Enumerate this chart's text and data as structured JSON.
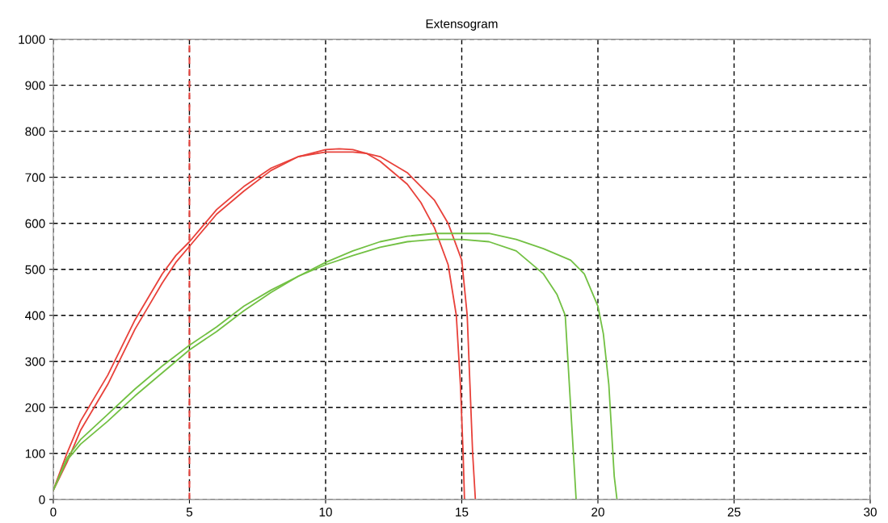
{
  "chart_data": {
    "type": "line",
    "title": "Extensogram",
    "xlim": [
      0,
      30
    ],
    "xticks": [
      0,
      5,
      10,
      15,
      20,
      25,
      30
    ],
    "ylim": [
      0,
      1000
    ],
    "yticks": [
      0,
      100,
      200,
      300,
      400,
      500,
      600,
      700,
      800,
      900,
      1000
    ],
    "grid": true,
    "line_style": "solid",
    "ref_lines": [
      {
        "axis": "x",
        "value": 5,
        "color": "#e8413a",
        "line_style": "dashed"
      }
    ],
    "series": [
      {
        "color": "#e8413a",
        "x": [
          0,
          0.5,
          1,
          1.5,
          2,
          2.5,
          3,
          3.5,
          4,
          4.5,
          5,
          6,
          7,
          8,
          9,
          10,
          11,
          11.5,
          12,
          13,
          14,
          14.5,
          15,
          15.2,
          15.3,
          15.4,
          15.5
        ],
        "values": [
          20,
          100,
          170,
          220,
          270,
          330,
          390,
          440,
          490,
          530,
          560,
          630,
          680,
          720,
          745,
          755,
          755,
          752,
          745,
          710,
          650,
          600,
          520,
          400,
          250,
          100,
          0
        ]
      },
      {
        "color": "#e8413a",
        "x": [
          0,
          0.5,
          1,
          1.5,
          2,
          2.5,
          3,
          3.5,
          4,
          4.5,
          5,
          6,
          7,
          8,
          9,
          10,
          10.5,
          11,
          11.5,
          12,
          13,
          13.5,
          14,
          14.5,
          14.8,
          14.95,
          15.05,
          15.1
        ],
        "values": [
          20,
          80,
          150,
          200,
          250,
          310,
          370,
          420,
          470,
          515,
          550,
          620,
          670,
          715,
          745,
          760,
          762,
          760,
          752,
          735,
          685,
          645,
          590,
          510,
          400,
          250,
          100,
          0
        ]
      },
      {
        "color": "#72c043",
        "x": [
          0,
          0.5,
          1,
          2,
          3,
          4,
          5,
          6,
          7,
          8,
          9,
          10,
          11,
          12,
          13,
          14,
          15,
          16,
          17,
          18,
          19,
          19.5,
          20,
          20.2,
          20.4,
          20.5,
          20.6,
          20.7
        ],
        "values": [
          20,
          90,
          130,
          185,
          240,
          290,
          335,
          375,
          420,
          455,
          485,
          515,
          540,
          560,
          572,
          578,
          578,
          578,
          565,
          545,
          520,
          490,
          420,
          360,
          250,
          150,
          50,
          0
        ]
      },
      {
        "color": "#72c043",
        "x": [
          0,
          0.5,
          1,
          2,
          3,
          4,
          5,
          6,
          7,
          8,
          9,
          10,
          11,
          12,
          13,
          14,
          15,
          16,
          17,
          18,
          18.5,
          18.8,
          18.9,
          19,
          19.1,
          19.2
        ],
        "values": [
          20,
          85,
          120,
          170,
          225,
          275,
          325,
          365,
          410,
          450,
          485,
          510,
          530,
          548,
          560,
          565,
          565,
          560,
          540,
          490,
          445,
          400,
          300,
          200,
          100,
          0
        ]
      }
    ]
  }
}
